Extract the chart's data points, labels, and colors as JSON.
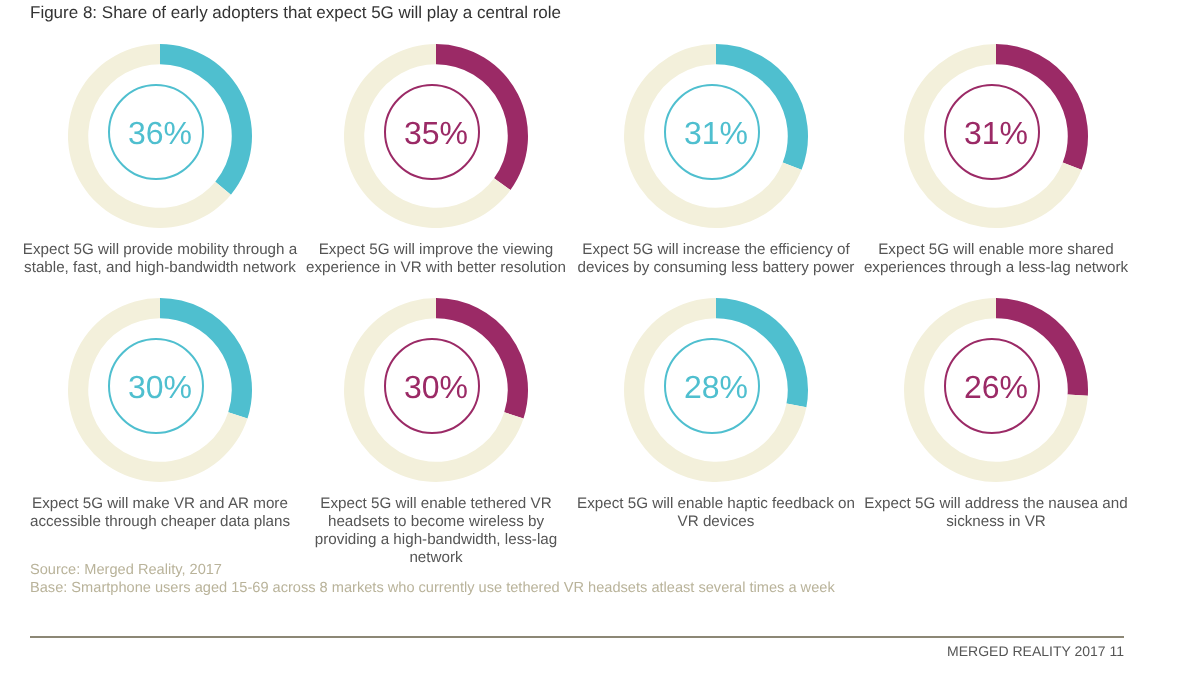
{
  "chart_data": [
    {
      "type": "donut",
      "title": "Figure 8: Share of early adopters that expect 5G will play a central role",
      "categories": [
        null,
        null
      ],
      "values": [
        36,
        64
      ],
      "colors": [
        "#4fbfcf",
        "#f3f0db"
      ],
      "value_labels": [
        "36%",
        null
      ],
      "xlabel": "Expect 5G will provide mobility through a stable, fast, and high-bandwidth network"
    },
    {
      "type": "donut",
      "categories": [
        null,
        null
      ],
      "values": [
        35,
        65
      ],
      "colors": [
        "#9b2a66",
        "#f3f0db"
      ],
      "value_labels": [
        "35%",
        null
      ],
      "xlabel": "Expect 5G will improve the viewing experience in VR with better resolution"
    },
    {
      "type": "donut",
      "categories": [
        null,
        null
      ],
      "values": [
        31,
        69
      ],
      "colors": [
        "#4fbfcf",
        "#f3f0db"
      ],
      "value_labels": [
        "31%",
        null
      ],
      "xlabel": "Expect 5G will increase the efficiency of devices by consuming less battery power"
    },
    {
      "type": "donut",
      "categories": [
        null,
        null
      ],
      "values": [
        31,
        69
      ],
      "colors": [
        "#9b2a66",
        "#f3f0db"
      ],
      "value_labels": [
        "31%",
        null
      ],
      "xlabel": "Expect 5G will enable more shared experiences through a less-lag network"
    },
    {
      "type": "donut",
      "categories": [
        null,
        null
      ],
      "values": [
        30,
        70
      ],
      "colors": [
        "#4fbfcf",
        "#f3f0db"
      ],
      "value_labels": [
        "30%",
        null
      ],
      "xlabel": "Expect 5G will make VR and AR more accessible through cheaper data plans"
    },
    {
      "type": "donut",
      "categories": [
        null,
        null
      ],
      "values": [
        30,
        70
      ],
      "colors": [
        "#9b2a66",
        "#f3f0db"
      ],
      "value_labels": [
        "30%",
        null
      ],
      "xlabel": "Expect 5G will enable tethered VR headsets to become wireless by providing a high-bandwidth, less-lag network"
    },
    {
      "type": "donut",
      "categories": [
        null,
        null
      ],
      "values": [
        28,
        72
      ],
      "colors": [
        "#4fbfcf",
        "#f3f0db"
      ],
      "value_labels": [
        "28%",
        null
      ],
      "xlabel": "Expect 5G will enable haptic feedback on VR devices"
    },
    {
      "type": "donut",
      "categories": [
        null,
        null
      ],
      "values": [
        26,
        74
      ],
      "colors": [
        "#9b2a66",
        "#f3f0db"
      ],
      "value_labels": [
        "26%",
        null
      ],
      "xlabel": "Expect 5G will address the nausea and sickness in VR",
      "annotations": [
        "Source: Merged Reality, 2017",
        "Base: Smartphone users aged 15-69 across 8 markets  who currently use tethered VR headsets atleast several times a week",
        "MERGED REALITY 2017 11"
      ]
    }
  ]
}
